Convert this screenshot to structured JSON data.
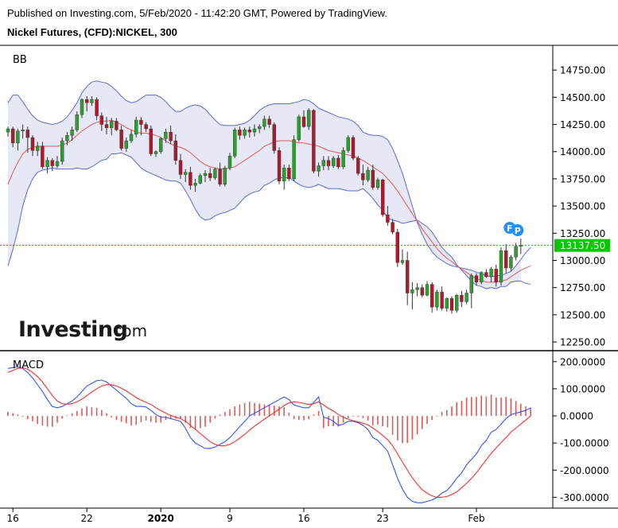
{
  "header": {
    "published": "Published on Investing.com, 5/Feb/2020 - 11:42:20 GMT, Powered by TradingView.",
    "symbol": "Nickel Futures, (CFD):NICKEL, 300"
  },
  "logo": {
    "main": "Investing",
    "suffix": ".com"
  },
  "colors": {
    "up": "#2ca02c",
    "down": "#b2182b",
    "band": "#5a6ad8",
    "band_fill": "#e6e8f5",
    "basis": "#e05a5a",
    "price_line": "#00c800",
    "price_label_bg": "#00c800",
    "macd": "#3355ee",
    "signal": "#ee3333",
    "hist": "#e05a5a",
    "marker": "#1e90ff"
  },
  "chart_data": [
    {
      "type": "candlestick",
      "title": "BB",
      "ylim": [
        12170,
        14890
      ],
      "y_ticks": [
        "14750.00",
        "14500.00",
        "14250.00",
        "14000.00",
        "13750.00",
        "13500.00",
        "13250.00",
        "13000.00",
        "12750.00",
        "12500.00",
        "12250.00"
      ],
      "last_price": 13137.5,
      "last_price_label": "13137.50",
      "markers": [
        "F",
        "P"
      ],
      "x_labels": [
        "16",
        "22",
        "2020",
        "9",
        "16",
        "23",
        "Feb"
      ],
      "x_label_bar_index": [
        1,
        16,
        31,
        45,
        60,
        76,
        95
      ],
      "ohlc": [
        [
          14180,
          14230,
          14140,
          14210
        ],
        [
          14210,
          14230,
          14040,
          14080
        ],
        [
          14080,
          14210,
          14010,
          14190
        ],
        [
          14190,
          14250,
          14120,
          14200
        ],
        [
          14200,
          14230,
          13990,
          14130
        ],
        [
          14130,
          14150,
          13960,
          14010
        ],
        [
          14010,
          14090,
          13960,
          14050
        ],
        [
          14050,
          14090,
          13840,
          13860
        ],
        [
          13860,
          13950,
          13800,
          13920
        ],
        [
          13920,
          13940,
          13820,
          13870
        ],
        [
          13870,
          13960,
          13850,
          13910
        ],
        [
          13910,
          14130,
          13880,
          14100
        ],
        [
          14100,
          14180,
          14060,
          14150
        ],
        [
          14150,
          14230,
          14100,
          14200
        ],
        [
          14200,
          14370,
          14180,
          14340
        ],
        [
          14340,
          14490,
          14310,
          14480
        ],
        [
          14480,
          14510,
          14370,
          14450
        ],
        [
          14450,
          14510,
          14420,
          14480
        ],
        [
          14480,
          14500,
          14290,
          14330
        ],
        [
          14330,
          14360,
          14190,
          14250
        ],
        [
          14250,
          14320,
          14160,
          14220
        ],
        [
          14220,
          14310,
          14150,
          14280
        ],
        [
          14280,
          14310,
          14190,
          14200
        ],
        [
          14200,
          14240,
          14010,
          14030
        ],
        [
          14030,
          14130,
          14000,
          14100
        ],
        [
          14100,
          14200,
          14080,
          14160
        ],
        [
          14160,
          14320,
          14130,
          14290
        ],
        [
          14290,
          14320,
          14150,
          14250
        ],
        [
          14250,
          14270,
          14180,
          14210
        ],
        [
          14210,
          14240,
          13960,
          13980
        ],
        [
          13980,
          14010,
          13950,
          14000
        ],
        [
          14000,
          14130,
          13980,
          14120
        ],
        [
          14120,
          14210,
          14080,
          14180
        ],
        [
          14180,
          14240,
          14070,
          14100
        ],
        [
          14100,
          14160,
          13880,
          13920
        ],
        [
          13920,
          13980,
          13750,
          13790
        ],
        [
          13790,
          13840,
          13720,
          13810
        ],
        [
          13810,
          13860,
          13650,
          13690
        ],
        [
          13690,
          13750,
          13630,
          13710
        ],
        [
          13710,
          13800,
          13700,
          13780
        ],
        [
          13780,
          13830,
          13720,
          13800
        ],
        [
          13800,
          13850,
          13730,
          13760
        ],
        [
          13760,
          13850,
          13740,
          13840
        ],
        [
          13840,
          13900,
          13680,
          13700
        ],
        [
          13700,
          13870,
          13680,
          13850
        ],
        [
          13850,
          13990,
          13830,
          13960
        ],
        [
          13960,
          14220,
          13940,
          14200
        ],
        [
          14200,
          14230,
          14110,
          14150
        ],
        [
          14150,
          14220,
          14120,
          14200
        ],
        [
          14200,
          14230,
          14130,
          14180
        ],
        [
          14180,
          14250,
          14140,
          14210
        ],
        [
          14210,
          14250,
          14170,
          14230
        ],
        [
          14230,
          14330,
          14200,
          14300
        ],
        [
          14300,
          14330,
          14220,
          14250
        ],
        [
          14250,
          14270,
          13980,
          14010
        ],
        [
          14010,
          14040,
          13700,
          13730
        ],
        [
          13730,
          13880,
          13650,
          13850
        ],
        [
          13850,
          13880,
          13730,
          13750
        ],
        [
          13750,
          14150,
          13730,
          14110
        ],
        [
          14110,
          14340,
          14090,
          14320
        ],
        [
          14320,
          14380,
          14220,
          14230
        ],
        [
          14230,
          14400,
          14200,
          14380
        ],
        [
          14380,
          14390,
          13800,
          13820
        ],
        [
          13820,
          13900,
          13770,
          13870
        ],
        [
          13870,
          13960,
          13830,
          13920
        ],
        [
          13920,
          13960,
          13830,
          13870
        ],
        [
          13870,
          13960,
          13850,
          13940
        ],
        [
          13940,
          13970,
          13840,
          13860
        ],
        [
          13860,
          14040,
          13840,
          14010
        ],
        [
          14010,
          14150,
          13990,
          14130
        ],
        [
          14130,
          14150,
          13920,
          13940
        ],
        [
          13940,
          13960,
          13780,
          13800
        ],
        [
          13800,
          13880,
          13690,
          13740
        ],
        [
          13740,
          13860,
          13720,
          13830
        ],
        [
          13830,
          13880,
          13650,
          13670
        ],
        [
          13670,
          13760,
          13650,
          13740
        ],
        [
          13740,
          13750,
          13400,
          13420
        ],
        [
          13420,
          13500,
          13320,
          13350
        ],
        [
          13350,
          13380,
          13240,
          13260
        ],
        [
          13260,
          13290,
          12940,
          12980
        ],
        [
          12980,
          13100,
          12960,
          13000
        ],
        [
          13000,
          13080,
          12590,
          12700
        ],
        [
          12700,
          12800,
          12550,
          12730
        ],
        [
          12730,
          12790,
          12670,
          12750
        ],
        [
          12750,
          12780,
          12660,
          12680
        ],
        [
          12680,
          12810,
          12670,
          12780
        ],
        [
          12780,
          12800,
          12520,
          12570
        ],
        [
          12570,
          12730,
          12540,
          12710
        ],
        [
          12710,
          12760,
          12540,
          12560
        ],
        [
          12560,
          12660,
          12530,
          12650
        ],
        [
          12650,
          12670,
          12510,
          12540
        ],
        [
          12540,
          12690,
          12520,
          12680
        ],
        [
          12680,
          12720,
          12570,
          12620
        ],
        [
          12620,
          12730,
          12600,
          12700
        ],
        [
          12700,
          12880,
          12560,
          12860
        ],
        [
          12860,
          12880,
          12770,
          12800
        ],
        [
          12800,
          12900,
          12780,
          12890
        ],
        [
          12890,
          12920,
          12840,
          12850
        ],
        [
          12850,
          12940,
          12800,
          12920
        ],
        [
          12920,
          12960,
          12760,
          12800
        ],
        [
          12800,
          13120,
          12770,
          13090
        ],
        [
          13090,
          13150,
          12880,
          12930
        ],
        [
          12930,
          13050,
          12900,
          13030
        ],
        [
          13030,
          13160,
          13000,
          13130
        ],
        [
          13130,
          13200,
          13060,
          13137.5
        ]
      ],
      "bb_upper": [
        14450,
        14520,
        14520,
        14460,
        14390,
        14330,
        14290,
        14270,
        14260,
        14250,
        14260,
        14280,
        14320,
        14380,
        14450,
        14540,
        14600,
        14640,
        14650,
        14640,
        14630,
        14600,
        14560,
        14510,
        14470,
        14450,
        14460,
        14490,
        14520,
        14520,
        14520,
        14500,
        14460,
        14410,
        14370,
        14370,
        14400,
        14420,
        14430,
        14420,
        14390,
        14340,
        14290,
        14250,
        14240,
        14240,
        14240,
        14250,
        14260,
        14290,
        14330,
        14380,
        14410,
        14430,
        14440,
        14440,
        14440,
        14440,
        14450,
        14460,
        14480,
        14470,
        14440,
        14400,
        14380,
        14360,
        14340,
        14320,
        14310,
        14300,
        14280,
        14240,
        14180,
        14160,
        14150,
        14150,
        14140,
        14110,
        14030,
        13920,
        13800,
        13650,
        13500,
        13350,
        13240,
        13150,
        13080,
        13030,
        13000,
        12970,
        12950,
        12940,
        12930,
        12920,
        12910,
        12890,
        12880,
        12860,
        12850,
        12860,
        12860,
        12880,
        12900,
        12950,
        13010,
        13070,
        13120
      ],
      "bb_basis": [
        13700,
        13810,
        13900,
        13980,
        14020,
        14040,
        14050,
        14050,
        14050,
        14050,
        14050,
        14060,
        14080,
        14110,
        14150,
        14190,
        14220,
        14250,
        14270,
        14280,
        14280,
        14290,
        14270,
        14250,
        14220,
        14200,
        14180,
        14170,
        14170,
        14160,
        14150,
        14130,
        14100,
        14070,
        14050,
        14040,
        14020,
        13990,
        13950,
        13910,
        13880,
        13860,
        13850,
        13840,
        13840,
        13850,
        13860,
        13890,
        13920,
        13950,
        13980,
        14010,
        14050,
        14070,
        14090,
        14100,
        14100,
        14100,
        14090,
        14080,
        14080,
        14070,
        14060,
        14050,
        14030,
        14010,
        14000,
        13990,
        13980,
        13970,
        13960,
        13940,
        13920,
        13890,
        13860,
        13830,
        13800,
        13750,
        13700,
        13640,
        13570,
        13500,
        13430,
        13360,
        13290,
        13230,
        13170,
        13110,
        13060,
        13020,
        12990,
        12950,
        12920,
        12890,
        12860,
        12830,
        12820,
        12800,
        12800,
        12800,
        12810,
        12820,
        12850,
        12880,
        12910,
        12930,
        12950
      ],
      "bb_lower": [
        12950,
        13100,
        13280,
        13500,
        13650,
        13750,
        13810,
        13830,
        13840,
        13850,
        13840,
        13840,
        13840,
        13840,
        13850,
        13840,
        13840,
        13860,
        13890,
        13920,
        13930,
        13980,
        13980,
        13990,
        13970,
        13950,
        13900,
        13850,
        13820,
        13800,
        13780,
        13760,
        13740,
        13730,
        13730,
        13710,
        13640,
        13560,
        13470,
        13400,
        13370,
        13380,
        13410,
        13430,
        13440,
        13460,
        13480,
        13530,
        13580,
        13610,
        13630,
        13640,
        13690,
        13710,
        13740,
        13760,
        13760,
        13760,
        13730,
        13700,
        13680,
        13670,
        13680,
        13700,
        13680,
        13660,
        13660,
        13660,
        13650,
        13640,
        13640,
        13640,
        13660,
        13620,
        13570,
        13510,
        13460,
        13390,
        13370,
        13360,
        13340,
        13350,
        13360,
        13370,
        13340,
        13310,
        13260,
        13190,
        13120,
        13070,
        13030,
        12960,
        12910,
        12860,
        12810,
        12770,
        12760,
        12740,
        12750,
        12740,
        12760,
        12760,
        12800,
        12810,
        12810,
        12790,
        12780
      ]
    },
    {
      "type": "macd",
      "title": "MACD",
      "ylim": [
        -340,
        220
      ],
      "y_ticks": [
        "200.0000",
        "100.0000",
        "0.0000",
        "-100.0000",
        "-200.0000",
        "-300.0000"
      ],
      "macd": [
        175,
        178,
        180,
        175,
        160,
        140,
        115,
        90,
        60,
        35,
        30,
        35,
        45,
        55,
        70,
        90,
        110,
        120,
        130,
        132,
        125,
        110,
        95,
        80,
        65,
        45,
        35,
        35,
        33,
        20,
        5,
        -5,
        -5,
        -10,
        -15,
        -20,
        -45,
        -80,
        -100,
        -110,
        -120,
        -120,
        -115,
        -105,
        -95,
        -80,
        -60,
        -40,
        -20,
        0,
        10,
        20,
        30,
        40,
        50,
        60,
        70,
        60,
        40,
        35,
        30,
        30,
        50,
        70,
        -5,
        -10,
        -20,
        -35,
        -30,
        -20,
        -20,
        -25,
        -35,
        -50,
        -80,
        -90,
        -110,
        -130,
        -180,
        -230,
        -270,
        -300,
        -315,
        -320,
        -320,
        -315,
        -310,
        -300,
        -285,
        -275,
        -255,
        -230,
        -210,
        -180,
        -160,
        -140,
        -110,
        -90,
        -60,
        -50,
        -30,
        -10,
        5,
        10,
        15,
        20,
        30
      ],
      "signal": [
        160,
        168,
        175,
        178,
        172,
        160,
        145,
        125,
        100,
        75,
        55,
        45,
        43,
        45,
        52,
        62,
        75,
        88,
        100,
        110,
        115,
        115,
        110,
        102,
        92,
        80,
        68,
        58,
        50,
        42,
        30,
        20,
        10,
        2,
        -5,
        -10,
        -20,
        -35,
        -50,
        -65,
        -80,
        -95,
        -105,
        -110,
        -110,
        -105,
        -95,
        -82,
        -68,
        -52,
        -38,
        -25,
        -12,
        0,
        12,
        25,
        38,
        48,
        52,
        50,
        46,
        42,
        45,
        52,
        40,
        28,
        18,
        5,
        -5,
        -12,
        -18,
        -22,
        -27,
        -33,
        -45,
        -58,
        -72,
        -88,
        -110,
        -140,
        -170,
        -200,
        -228,
        -252,
        -272,
        -285,
        -295,
        -300,
        -300,
        -297,
        -290,
        -280,
        -265,
        -248,
        -230,
        -210,
        -185,
        -162,
        -138,
        -118,
        -98,
        -80,
        -60,
        -45,
        -30,
        -15,
        0
      ],
      "hist": [
        15,
        10,
        5,
        -3,
        -12,
        -20,
        -30,
        -35,
        -40,
        -40,
        -25,
        -10,
        2,
        10,
        18,
        28,
        35,
        32,
        30,
        22,
        10,
        -5,
        -15,
        -22,
        -27,
        -35,
        -33,
        -23,
        -17,
        -22,
        -25,
        -25,
        -15,
        -12,
        -10,
        -10,
        -25,
        -45,
        -50,
        -45,
        -40,
        -25,
        -10,
        5,
        15,
        25,
        35,
        42,
        48,
        52,
        48,
        45,
        42,
        40,
        38,
        35,
        32,
        12,
        -12,
        -15,
        -16,
        -12,
        5,
        18,
        -45,
        -38,
        -38,
        -40,
        -25,
        -8,
        -2,
        -3,
        -8,
        -17,
        -35,
        -32,
        -38,
        -42,
        -70,
        -90,
        -100,
        -100,
        -87,
        -68,
        -48,
        -30,
        -15,
        0,
        15,
        22,
        35,
        50,
        55,
        68,
        70,
        70,
        75,
        72,
        78,
        68,
        68,
        70,
        65,
        55,
        45,
        35,
        30
      ]
    }
  ]
}
